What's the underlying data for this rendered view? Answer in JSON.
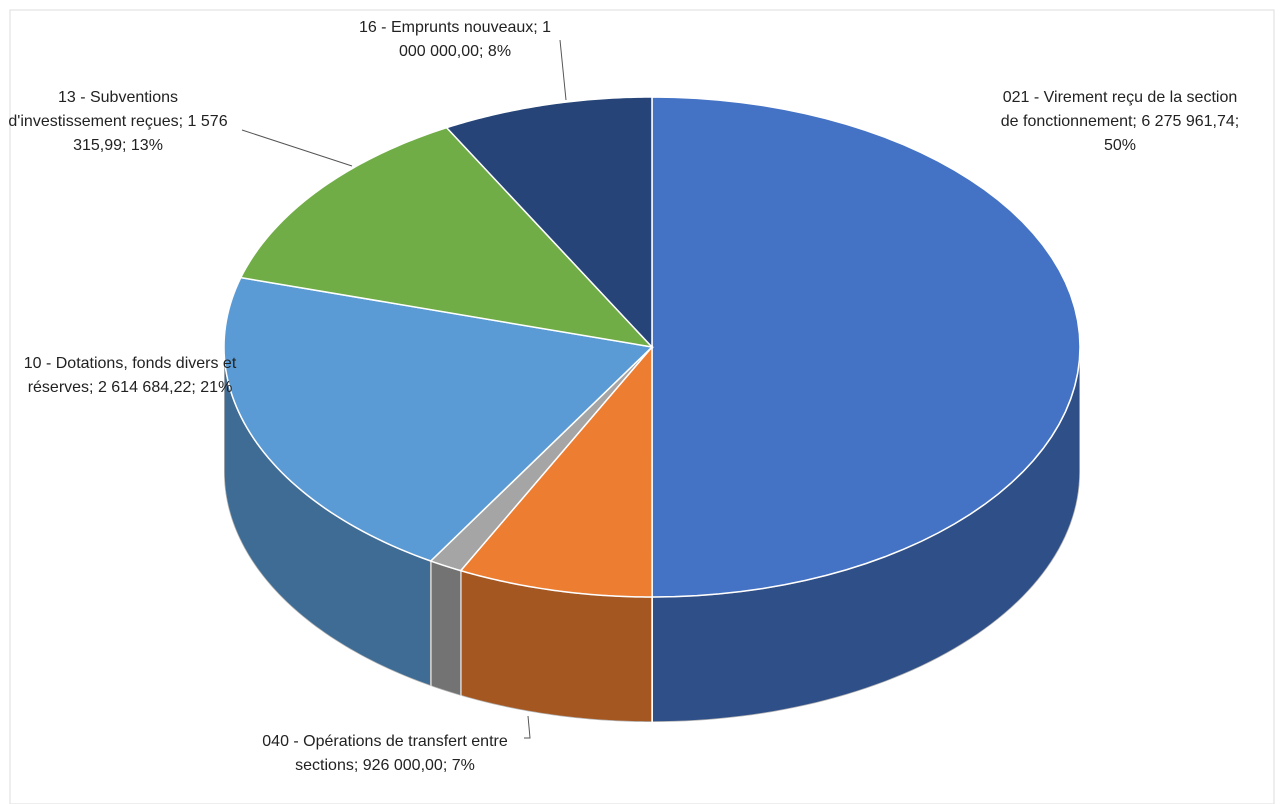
{
  "chart_data": {
    "type": "pie",
    "categories": [
      "021 - Virement reçu de la section de fonctionnement;",
      "040 - Opérations de transfert entre sections;",
      null,
      "10 - Dotations, fonds divers et réserves;",
      "13 - Subventions d'investissement reçues;",
      "16 - Emprunts nouveaux;"
    ],
    "values": [
      6275961.74,
      926000,
      160000,
      2614684.22,
      1576315.99,
      1000000
    ],
    "value_labels": [
      "6 275 961,74;",
      "926 000,00;",
      null,
      "2 614 684,22;",
      "1 576 315,99;",
      "1 000 000,00;"
    ],
    "percentages": [
      50,
      7,
      null,
      21,
      13,
      8
    ],
    "percentage_labels": [
      "50%",
      "7%",
      null,
      "21%",
      "13%",
      "8%"
    ],
    "colors": [
      "#4472c4",
      "#ed7d31",
      "#a5a5a5",
      "#5b9bd5",
      "#70ad47",
      "#264478"
    ],
    "start_angle": 0,
    "direction": "clockwise",
    "three_d": true
  }
}
